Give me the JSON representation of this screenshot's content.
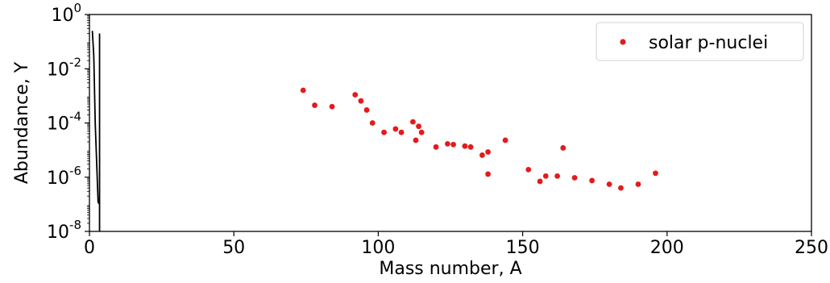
{
  "chart_data": {
    "type": "scatter",
    "title": "",
    "xlabel": "Mass number, A",
    "ylabel": "Abundance, Y",
    "xlim": [
      0,
      250
    ],
    "ylim": [
      1e-08,
      1
    ],
    "yscale": "log",
    "grid": false,
    "legend_position": "top-right",
    "x_ticks": [
      "0",
      "50",
      "100",
      "150",
      "200",
      "250"
    ],
    "y_ticks": [
      {
        "base": "10",
        "exp": "-8"
      },
      {
        "base": "10",
        "exp": "-6"
      },
      {
        "base": "10",
        "exp": "-4"
      },
      {
        "base": "10",
        "exp": "-2"
      },
      {
        "base": "10",
        "exp": "0"
      }
    ],
    "series": [
      {
        "kind": "line",
        "color": "#000000",
        "points": [
          [
            1,
            0.25
          ],
          [
            1.5,
            0.03
          ],
          [
            2,
            0.0001
          ],
          [
            3,
            1.2e-07
          ],
          [
            3.5,
            1e-07
          ],
          [
            3.5,
            0.2
          ],
          [
            3.5,
            1e-08
          ]
        ]
      },
      {
        "name": "solar p-nuclei",
        "kind": "scatter",
        "color": "#e41a1c",
        "points": [
          [
            74,
            0.0016
          ],
          [
            78,
            0.00045
          ],
          [
            84,
            0.0004
          ],
          [
            92,
            0.0011
          ],
          [
            94,
            0.00065
          ],
          [
            96,
            0.0003
          ],
          [
            98,
            0.0001
          ],
          [
            102,
            4.5e-05
          ],
          [
            106,
            6e-05
          ],
          [
            108,
            4.5e-05
          ],
          [
            112,
            0.00011
          ],
          [
            113,
            2.3e-05
          ],
          [
            114,
            7.5e-05
          ],
          [
            115,
            4.5e-05
          ],
          [
            120,
            1.3e-05
          ],
          [
            124,
            1.7e-05
          ],
          [
            126,
            1.6e-05
          ],
          [
            130,
            1.4e-05
          ],
          [
            132,
            1.3e-05
          ],
          [
            136,
            6.5e-06
          ],
          [
            138,
            8.5e-06
          ],
          [
            138,
            1.3e-06
          ],
          [
            144,
            2.3e-05
          ],
          [
            152,
            1.9e-06
          ],
          [
            156,
            7e-07
          ],
          [
            158,
            1.1e-06
          ],
          [
            162,
            1.1e-06
          ],
          [
            164,
            1.2e-05
          ],
          [
            168,
            9.5e-07
          ],
          [
            174,
            7.5e-07
          ],
          [
            180,
            5.5e-07
          ],
          [
            184,
            4e-07
          ],
          [
            190,
            5.5e-07
          ],
          [
            196,
            1.4e-06
          ]
        ]
      }
    ]
  }
}
